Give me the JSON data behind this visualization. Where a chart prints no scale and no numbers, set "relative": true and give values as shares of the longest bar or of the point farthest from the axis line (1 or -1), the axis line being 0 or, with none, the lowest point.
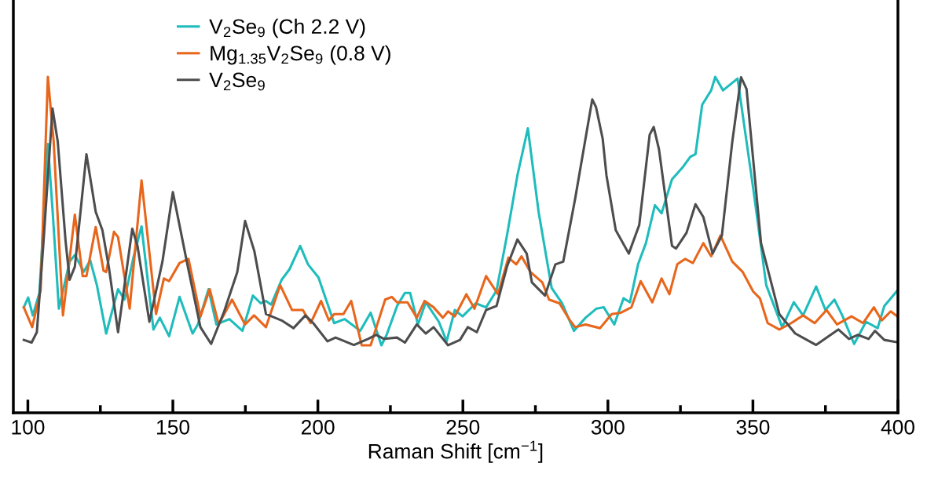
{
  "chart_data": {
    "type": "line",
    "relative": true,
    "xlabel": "Raman Shift [cm$^{−1}$]",
    "xlim": [
      95,
      400
    ],
    "xticks": [
      100,
      {
        "value": 125,
        "label": null
      },
      150,
      {
        "value": 175,
        "label": null
      },
      200,
      {
        "value": 225,
        "label": null
      },
      250,
      {
        "value": 275,
        "label": null
      },
      300,
      {
        "value": 325,
        "label": null
      },
      350,
      {
        "value": 375,
        "label": null
      },
      400
    ],
    "legend": "top left",
    "grid": false,
    "line_style": "solid",
    "marker": "none",
    "series": [
      {
        "name": "V$_{2}$Se$_{9}$ (Ch 2.2 V)",
        "color": "#1fbcbc",
        "x": [
          98.6,
          100.1,
          101.7,
          104,
          106.9,
          108.5,
          110.7,
          114.4,
          116.2,
          119.3,
          121.5,
          123.8,
          127,
          131.1,
          133.3,
          136.5,
          139.2,
          143.3,
          145.5,
          148.7,
          152.3,
          156.8,
          158.6,
          162.3,
          165,
          169.5,
          174,
          177.6,
          180.3,
          182.1,
          183.9,
          187.5,
          190.2,
          193.9,
          196.6,
          200.2,
          205.6,
          209.2,
          214.6,
          218.2,
          221.9,
          223.7,
          227.3,
          230,
          231.8,
          234.5,
          237.2,
          241.7,
          244.4,
          247.2,
          249.9,
          254.4,
          258,
          261.6,
          265.2,
          268.8,
          272.4,
          276.1,
          280.6,
          284.2,
          288.3,
          292.3,
          296,
          298.6,
          302.2,
          305.4,
          307.6,
          310.4,
          313.1,
          316.2,
          318.5,
          322.1,
          325.7,
          328.4,
          330.2,
          332.5,
          335.6,
          337,
          339.7,
          344.7,
          350.1,
          354.6,
          360.1,
          364.1,
          367.3,
          371.8,
          375,
          378.1,
          380.8,
          384.9,
          389,
          393,
          395.3,
          399.8
        ],
        "values": [
          0.314,
          0.343,
          0.29,
          0.357,
          0.8,
          0.606,
          0.31,
          0.45,
          0.47,
          0.42,
          0.454,
          0.38,
          0.236,
          0.368,
          0.337,
          0.466,
          0.555,
          0.248,
          0.283,
          0.228,
          0.345,
          0.236,
          0.263,
          0.368,
          0.263,
          0.279,
          0.244,
          0.349,
          0.326,
          0.333,
          0.322,
          0.396,
          0.427,
          0.497,
          0.442,
          0.403,
          0.267,
          0.279,
          0.244,
          0.298,
          0.201,
          0.232,
          0.318,
          0.357,
          0.357,
          0.263,
          0.329,
          0.271,
          0.213,
          0.306,
          0.287,
          0.326,
          0.314,
          0.364,
          0.528,
          0.707,
          0.847,
          0.598,
          0.372,
          0.326,
          0.244,
          0.283,
          0.31,
          0.314,
          0.263,
          0.341,
          0.329,
          0.442,
          0.505,
          0.618,
          0.594,
          0.695,
          0.73,
          0.762,
          0.77,
          0.917,
          0.96,
          1.0,
          0.96,
          0.995,
          0.668,
          0.38,
          0.255,
          0.329,
          0.29,
          0.376,
          0.306,
          0.337,
          0.29,
          0.205,
          0.271,
          0.252,
          0.318,
          0.364
        ]
      },
      {
        "name": "Mg$_{1.35}$V$_{2}$Se$_{9}$ (0.8 V)",
        "color": "#e8661c",
        "x": [
          98.6,
          101.5,
          104.4,
          106.9,
          108.9,
          112.1,
          116.2,
          118.9,
          120.2,
          123.4,
          126.1,
          127,
          129.7,
          131.1,
          135.1,
          139.2,
          144.2,
          146.9,
          148.7,
          152.3,
          155.4,
          159.5,
          162.7,
          165.8,
          170.4,
          174.9,
          178,
          182.1,
          187,
          191.1,
          194.8,
          197.5,
          201.1,
          203.8,
          205.6,
          208.8,
          211.5,
          215.1,
          218.2,
          223.2,
          225.5,
          227.3,
          230.9,
          234.1,
          236.8,
          239.9,
          243.1,
          244.9,
          247.2,
          251.2,
          254,
          258,
          262.1,
          265.7,
          268.4,
          270.2,
          273.3,
          277.4,
          279.7,
          283.3,
          286.9,
          288.7,
          292.3,
          297.3,
          301.3,
          304.5,
          308.1,
          311.3,
          315.3,
          318.5,
          321.2,
          323.9,
          326.6,
          329.3,
          332.9,
          335.6,
          338.8,
          342.9,
          346.5,
          350.1,
          352.4,
          355.1,
          359.1,
          363.2,
          367.3,
          371.3,
          375.4,
          379,
          384,
          388,
          391.7,
          394.4,
          397.5,
          399.8
        ],
        "values": [
          0.314,
          0.255,
          0.364,
          1.0,
          0.808,
          0.29,
          0.59,
          0.407,
          0.407,
          0.553,
          0.423,
          0.419,
          0.539,
          0.523,
          0.31,
          0.692,
          0.294,
          0.4,
          0.392,
          0.446,
          0.458,
          0.287,
          0.368,
          0.263,
          0.337,
          0.263,
          0.29,
          0.255,
          0.38,
          0.306,
          0.306,
          0.267,
          0.333,
          0.275,
          0.294,
          0.294,
          0.333,
          0.201,
          0.201,
          0.337,
          0.345,
          0.329,
          0.329,
          0.283,
          0.333,
          0.314,
          0.283,
          0.302,
          0.287,
          0.353,
          0.31,
          0.407,
          0.353,
          0.462,
          0.442,
          0.466,
          0.419,
          0.388,
          0.337,
          0.326,
          0.275,
          0.255,
          0.263,
          0.252,
          0.294,
          0.298,
          0.314,
          0.392,
          0.329,
          0.4,
          0.353,
          0.442,
          0.458,
          0.446,
          0.505,
          0.466,
          0.528,
          0.45,
          0.419,
          0.361,
          0.341,
          0.267,
          0.248,
          0.267,
          0.29,
          0.267,
          0.306,
          0.263,
          0.287,
          0.267,
          0.314,
          0.275,
          0.302,
          0.287
        ]
      },
      {
        "name": "V$_{2}$Se$_{9}$",
        "color": "#4d4d4f",
        "x": [
          98.6,
          101.3,
          103.1,
          105.3,
          108.5,
          110.3,
          113,
          114.4,
          116.2,
          120.2,
          123.4,
          125.7,
          127.9,
          131.1,
          136,
          137.8,
          141.9,
          146.4,
          150,
          155,
          159.5,
          163.2,
          167.7,
          172.2,
          174.9,
          178.1,
          182.1,
          187.5,
          191.6,
          195.7,
          198.4,
          203.3,
          206.1,
          212.4,
          217.3,
          220.1,
          222.8,
          227.3,
          230,
          234.1,
          237.2,
          239.9,
          244.9,
          249,
          251.7,
          254.8,
          258,
          261.6,
          265.2,
          268.8,
          272,
          273.8,
          278.3,
          281.9,
          284.6,
          288.7,
          294.6,
          295.9,
          298.2,
          299.5,
          302.7,
          307.2,
          310.8,
          314.4,
          315.8,
          317.6,
          322.1,
          323.5,
          327.1,
          330.2,
          332.9,
          336.1,
          339.3,
          342.9,
          345.9,
          347.8,
          352.8,
          359.1,
          364.6,
          371.8,
          375.4,
          379.5,
          383.1,
          386.2,
          389.9,
          392.1,
          395.3,
          399.8
        ],
        "values": [
          0.217,
          0.209,
          0.24,
          0.497,
          0.906,
          0.808,
          0.512,
          0.396,
          0.435,
          0.77,
          0.598,
          0.544,
          0.435,
          0.24,
          0.548,
          0.497,
          0.271,
          0.45,
          0.657,
          0.442,
          0.255,
          0.205,
          0.302,
          0.419,
          0.571,
          0.481,
          0.294,
          0.275,
          0.252,
          0.29,
          0.267,
          0.213,
          0.224,
          0.202,
          0.22,
          0.232,
          0.22,
          0.224,
          0.209,
          0.263,
          0.236,
          0.255,
          0.201,
          0.217,
          0.255,
          0.24,
          0.306,
          0.318,
          0.435,
          0.516,
          0.474,
          0.388,
          0.349,
          0.442,
          0.45,
          0.637,
          0.933,
          0.91,
          0.816,
          0.707,
          0.544,
          0.474,
          0.559,
          0.828,
          0.851,
          0.785,
          0.497,
          0.489,
          0.536,
          0.621,
          0.583,
          0.474,
          0.528,
          0.808,
          0.999,
          0.964,
          0.505,
          0.294,
          0.236,
          0.202,
          0.224,
          0.248,
          0.22,
          0.232,
          0.22,
          0.244,
          0.217,
          0.21
        ]
      }
    ]
  }
}
